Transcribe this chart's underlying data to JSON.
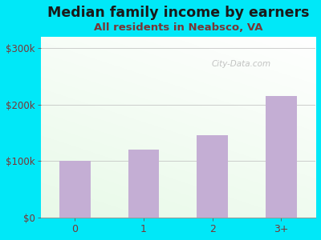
{
  "title": "Median family income by earners",
  "subtitle": "All residents in Neabsco, VA",
  "categories": [
    "0",
    "1",
    "2",
    "3+"
  ],
  "values": [
    100000,
    120000,
    145000,
    215000
  ],
  "bar_color": "#c4aed4",
  "title_fontsize": 12.5,
  "subtitle_fontsize": 9.5,
  "title_color": "#1a1a1a",
  "subtitle_color": "#7a3535",
  "tick_color": "#7a3535",
  "ytick_labels": [
    "$0",
    "$100k",
    "$200k",
    "$300k"
  ],
  "ytick_values": [
    0,
    100000,
    200000,
    300000
  ],
  "ylim": [
    0,
    320000
  ],
  "bg_outer_color": "#00e8f8",
  "watermark": "City-Data.com"
}
